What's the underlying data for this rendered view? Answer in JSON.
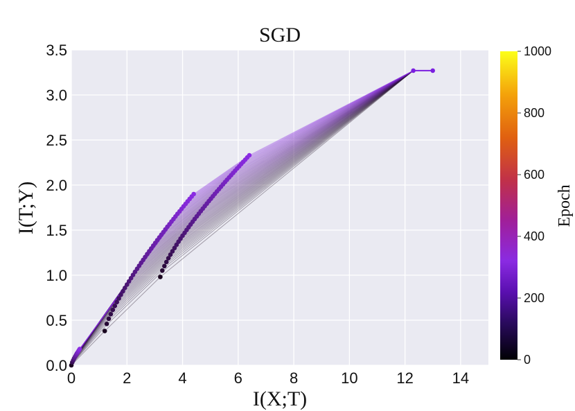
{
  "chart_data": {
    "type": "line",
    "title": "SGD",
    "xlabel": "I(X;T)",
    "ylabel": "I(T;Y)",
    "xlim": [
      0,
      15
    ],
    "ylim": [
      0,
      3.5
    ],
    "xticks": [
      "0",
      "2",
      "4",
      "6",
      "8",
      "10",
      "12",
      "14"
    ],
    "yticks": [
      "0.0",
      "0.5",
      "1.0",
      "1.5",
      "2.0",
      "2.5",
      "3.0",
      "3.5"
    ],
    "grid": true,
    "colorbar": {
      "label": "Epoch",
      "range": [
        0,
        1000
      ],
      "ticks": [
        "0",
        "200",
        "400",
        "600",
        "800",
        "1000"
      ],
      "colormap": [
        "#000004",
        "#2a0a5e",
        "#5a0fb0",
        "#8a2be2",
        "#b01e7a",
        "#d1410f",
        "#ee7a00",
        "#f8c50a",
        "#fcff1a"
      ]
    },
    "layer_trajectories": [
      {
        "start": [
          0.0,
          0.0
        ],
        "end": [
          0.3,
          0.18
        ]
      },
      {
        "start": [
          1.2,
          0.38
        ],
        "end": [
          4.4,
          1.9
        ]
      },
      {
        "start": [
          3.2,
          0.98
        ],
        "end": [
          6.4,
          2.33
        ]
      },
      {
        "start": [
          12.3,
          3.27
        ],
        "end": [
          13.0,
          3.27
        ]
      }
    ],
    "epoch_connection_lines": {
      "from_color": "#1a0a1e",
      "to_color": "#8a2be2",
      "converge_point": [
        12.3,
        3.27
      ]
    }
  }
}
